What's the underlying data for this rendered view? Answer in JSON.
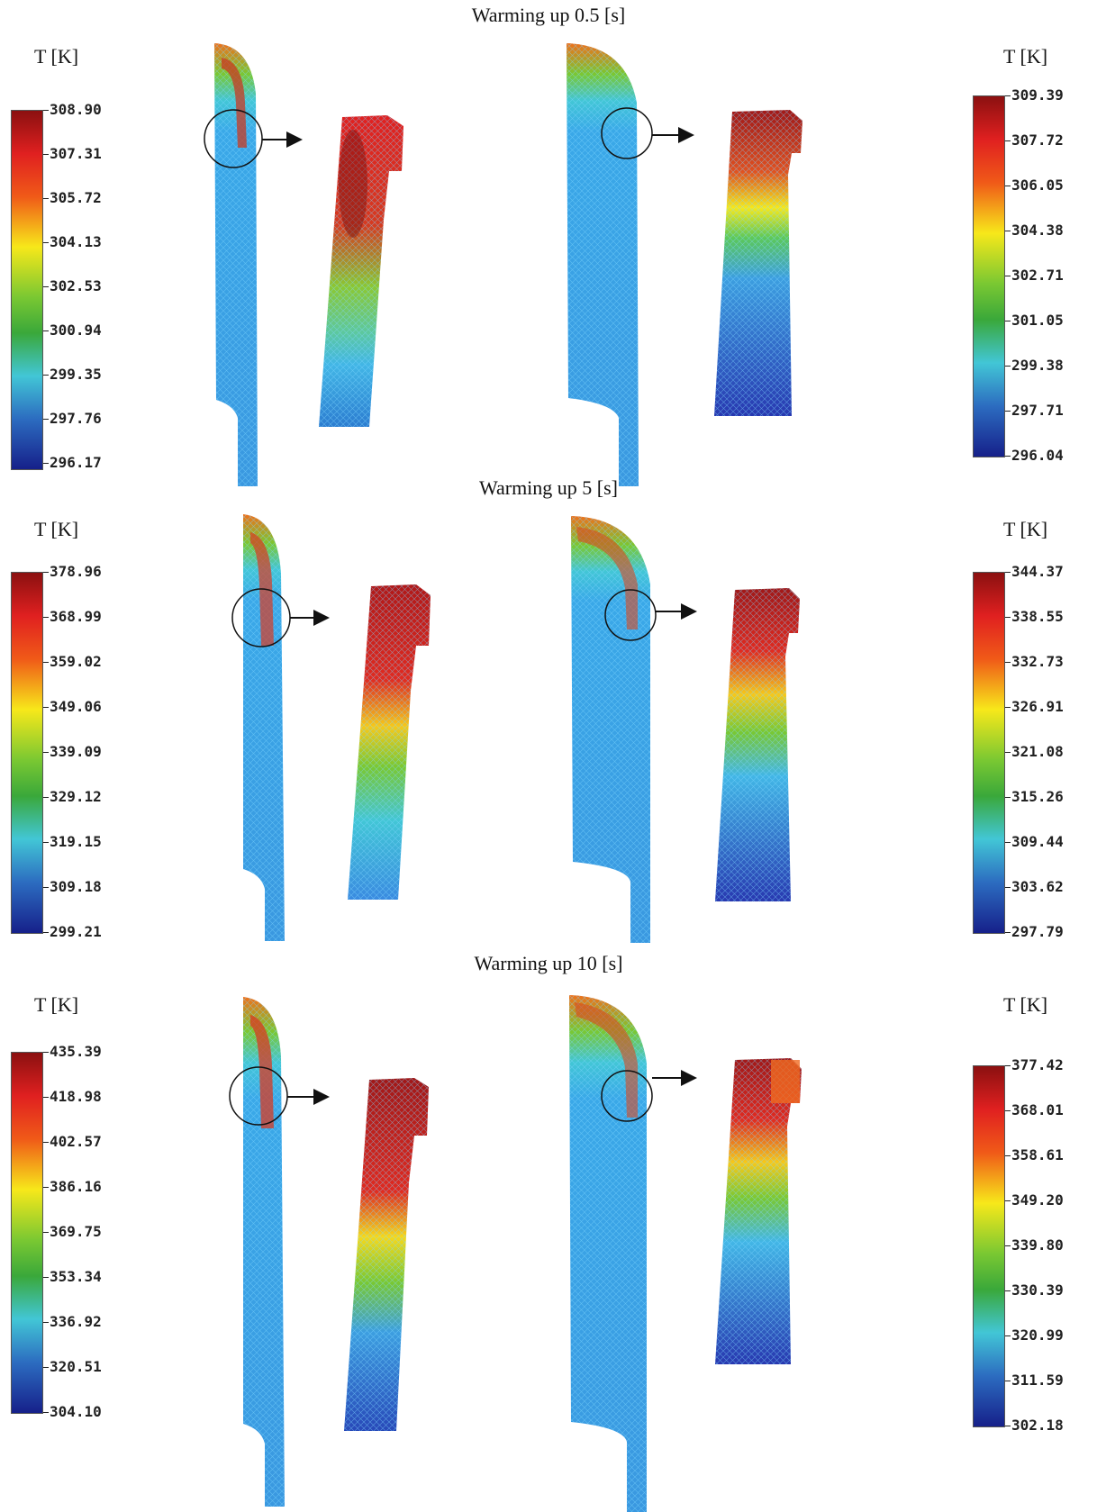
{
  "unit_label": "T [K]",
  "colors": {
    "scale_top": "#8b1010",
    "scale_red": "#e02020",
    "scale_orange": "#f05a18",
    "scale_yellow": "#f7e81a",
    "scale_green": "#3aa83a",
    "scale_cyan": "#42c6d6",
    "scale_blue": "#2c6cc0",
    "scale_bottom": "#16208a"
  },
  "panels": [
    {
      "title": "Warming up 0.5 [s]",
      "left_scale": [
        "308.90",
        "307.31",
        "305.72",
        "304.13",
        "302.53",
        "300.94",
        "299.35",
        "297.76",
        "296.17"
      ],
      "right_scale": [
        "309.39",
        "307.72",
        "306.05",
        "304.38",
        "302.71",
        "301.05",
        "299.38",
        "297.71",
        "296.04"
      ]
    },
    {
      "title": "Warming up 5 [s]",
      "left_scale": [
        "378.96",
        "368.99",
        "359.02",
        "349.06",
        "339.09",
        "329.12",
        "319.15",
        "309.18",
        "299.21"
      ],
      "right_scale": [
        "344.37",
        "338.55",
        "332.73",
        "326.91",
        "321.08",
        "315.26",
        "309.44",
        "303.62",
        "297.79"
      ]
    },
    {
      "title": "Warming up 10 [s]",
      "left_scale": [
        "435.39",
        "418.98",
        "402.57",
        "386.16",
        "369.75",
        "353.34",
        "336.92",
        "320.51",
        "304.10"
      ],
      "right_scale": [
        "377.42",
        "368.01",
        "358.61",
        "349.20",
        "339.80",
        "330.39",
        "320.99",
        "311.59",
        "302.18"
      ]
    }
  ]
}
